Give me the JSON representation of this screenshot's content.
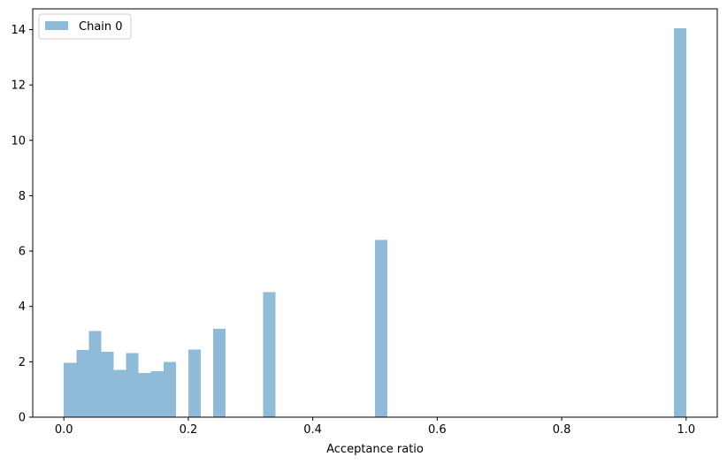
{
  "chart_data": {
    "type": "bar",
    "title": "",
    "xlabel": "Acceptance ratio",
    "ylabel": "",
    "xlim": [
      -0.05,
      1.05
    ],
    "ylim": [
      0,
      14.75
    ],
    "xticks": [
      "0.0",
      "0.2",
      "0.4",
      "0.6",
      "0.8",
      "1.0"
    ],
    "yticks": [
      "0",
      "2",
      "4",
      "6",
      "8",
      "10",
      "12",
      "14"
    ],
    "grid": false,
    "legend": "upper-left",
    "bin_width": 0.02,
    "series": [
      {
        "name": "Chain 0",
        "color": "#1f77b4",
        "alpha": 0.5,
        "bins": [
          {
            "x0": 0.0,
            "x1": 0.02,
            "value": 1.97
          },
          {
            "x0": 0.02,
            "x1": 0.04,
            "value": 2.43
          },
          {
            "x0": 0.04,
            "x1": 0.06,
            "value": 3.12
          },
          {
            "x0": 0.06,
            "x1": 0.08,
            "value": 2.37
          },
          {
            "x0": 0.08,
            "x1": 0.1,
            "value": 1.71
          },
          {
            "x0": 0.1,
            "x1": 0.12,
            "value": 2.31
          },
          {
            "x0": 0.12,
            "x1": 0.14,
            "value": 1.59
          },
          {
            "x0": 0.14,
            "x1": 0.16,
            "value": 1.66
          },
          {
            "x0": 0.16,
            "x1": 0.18,
            "value": 2.0
          },
          {
            "x0": 0.2,
            "x1": 0.22,
            "value": 2.44
          },
          {
            "x0": 0.24,
            "x1": 0.26,
            "value": 3.2
          },
          {
            "x0": 0.32,
            "x1": 0.34,
            "value": 4.52
          },
          {
            "x0": 0.5,
            "x1": 0.52,
            "value": 6.4
          },
          {
            "x0": 0.98,
            "x1": 1.0,
            "value": 14.05
          }
        ]
      }
    ]
  }
}
